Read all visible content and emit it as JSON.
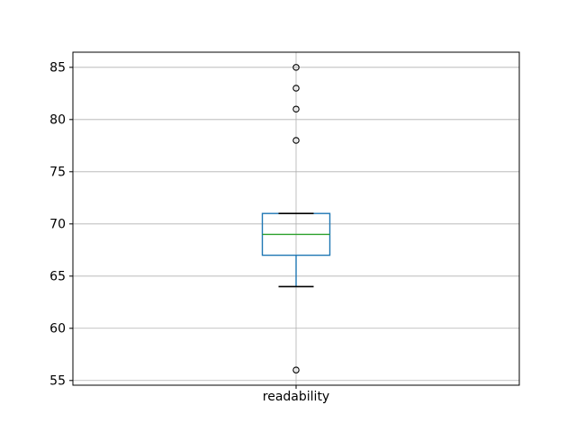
{
  "chart_data": {
    "type": "boxplot",
    "title": "",
    "xlabel": "",
    "ylabel": "",
    "categories": [
      "readability"
    ],
    "series": [
      {
        "name": "readability",
        "whisker_low": 64,
        "q1": 67,
        "median": 69,
        "q3": 71,
        "whisker_high": 71,
        "fliers": [
          85,
          83,
          81,
          78,
          56
        ]
      }
    ],
    "yticks": [
      55,
      60,
      65,
      70,
      75,
      80,
      85
    ],
    "ylim": [
      54.55,
      86.45
    ],
    "grid": true,
    "legend": "none",
    "colors": {
      "box": "#1f77b4",
      "median": "#2ca02c",
      "whisker": "#1f77b4",
      "cap": "#000000",
      "flier_edge": "#000000",
      "grid": "#b0b0b0",
      "spine": "#000000",
      "text": "#000000",
      "background": "#ffffff"
    }
  }
}
